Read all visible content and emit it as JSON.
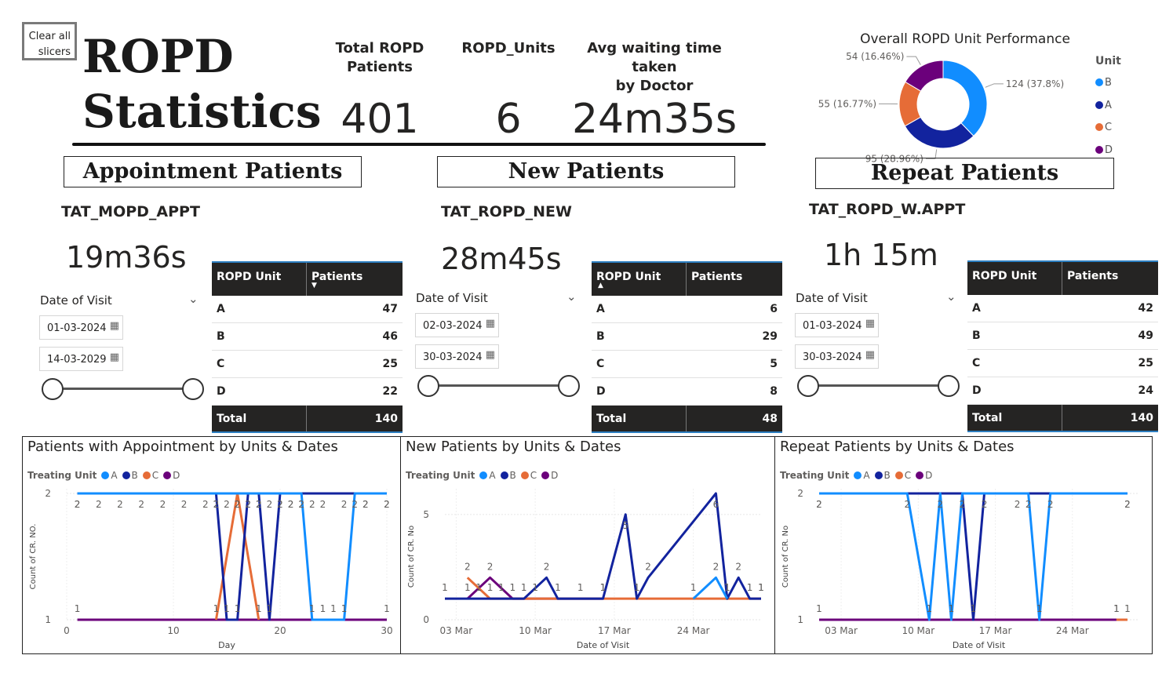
{
  "clear_button": {
    "label_line1": "Clear all",
    "label_line2": "slicers"
  },
  "title": {
    "line1": "ROPD",
    "line2": "Statistics"
  },
  "kpis": [
    {
      "label_line1": "Total ROPD",
      "label_line2": "Patients",
      "value": "401"
    },
    {
      "label_line1": "ROPD_Units",
      "label_line2": "",
      "value": "6"
    },
    {
      "label_line1": "Avg waiting time taken",
      "label_line2": "by Doctor",
      "value": "24m35s"
    }
  ],
  "donut": {
    "title": "Overall ROPD Unit Performance",
    "legend_title": "Unit",
    "slices": [
      {
        "unit": "B",
        "value": 124,
        "label": "124 (37.8%)",
        "color": "#118dff"
      },
      {
        "unit": "A",
        "value": 95,
        "label": "95 (28.96%)",
        "color": "#12239e"
      },
      {
        "unit": "C",
        "value": 55,
        "label": "55 (16.77%)",
        "color": "#e66c37"
      },
      {
        "unit": "D",
        "value": 54,
        "label": "54 (16.46%)",
        "color": "#6b007b"
      }
    ]
  },
  "sections": [
    {
      "heading": "Appointment Patients",
      "tat_label": "TAT_MOPD_APPT",
      "tat_value": "19m36s",
      "slicer": {
        "title": "Date of Visit",
        "start": "01-03-2024",
        "end": "14-03-2029"
      },
      "table": {
        "col1": "ROPD Unit",
        "col2": "Patients",
        "sort_indicator": "▼",
        "rows": [
          {
            "unit": "A",
            "patients": "47"
          },
          {
            "unit": "B",
            "patients": "46"
          },
          {
            "unit": "C",
            "patients": "25"
          },
          {
            "unit": "D",
            "patients": "22"
          }
        ],
        "total_label": "Total",
        "total_value": "140"
      }
    },
    {
      "heading": "New Patients",
      "tat_label": "TAT_ROPD_NEW",
      "tat_value": "28m45s",
      "slicer": {
        "title": "Date of Visit",
        "start": "02-03-2024",
        "end": "30-03-2024"
      },
      "table": {
        "col1": "ROPD Unit",
        "col2": "Patients",
        "sort_indicator": "▲",
        "rows": [
          {
            "unit": "A",
            "patients": "6"
          },
          {
            "unit": "B",
            "patients": "29"
          },
          {
            "unit": "C",
            "patients": "5"
          },
          {
            "unit": "D",
            "patients": "8"
          }
        ],
        "total_label": "Total",
        "total_value": "48"
      }
    },
    {
      "heading": "Repeat Patients",
      "tat_label": "TAT_ROPD_W.APPT",
      "tat_value": "1h 15m",
      "slicer": {
        "title": "Date of Visit",
        "start": "01-03-2024",
        "end": "30-03-2024"
      },
      "table": {
        "col1": "ROPD Unit",
        "col2": "Patients",
        "sort_indicator": "",
        "rows": [
          {
            "unit": "A",
            "patients": "42"
          },
          {
            "unit": "B",
            "patients": "49"
          },
          {
            "unit": "C",
            "patients": "25"
          },
          {
            "unit": "D",
            "patients": "24"
          }
        ],
        "total_label": "Total",
        "total_value": "140"
      }
    }
  ],
  "chart_data": [
    {
      "type": "line",
      "title": "Patients with Appointment by Units & Dates",
      "legend_title": "Treating Unit",
      "xlabel": "Day",
      "ylabel": "Count of CR. NO.",
      "x_ticks": [
        "0",
        "10",
        "20",
        "30"
      ],
      "y_ticks": [
        "1",
        "2"
      ],
      "xlim": [
        0,
        30
      ],
      "ylim": [
        1,
        2
      ],
      "series": [
        {
          "name": "A",
          "color": "#118dff",
          "x": [
            1,
            14,
            15,
            16,
            17,
            18,
            19,
            20,
            21,
            22,
            23,
            24,
            25,
            26,
            27,
            28,
            30
          ],
          "y": [
            2,
            2,
            2,
            2,
            2,
            2,
            2,
            2,
            2,
            2,
            1,
            1,
            1,
            1,
            2,
            2,
            2
          ]
        },
        {
          "name": "B",
          "color": "#12239e",
          "x": [
            1,
            3,
            5,
            7,
            9,
            11,
            13,
            14,
            15,
            16,
            17,
            18,
            19,
            20,
            21,
            22,
            23,
            24,
            26,
            28,
            30
          ],
          "y": [
            2,
            2,
            2,
            2,
            2,
            2,
            2,
            2,
            1,
            1,
            2,
            2,
            1,
            2,
            2,
            2,
            2,
            2,
            2,
            2,
            2
          ]
        },
        {
          "name": "C",
          "color": "#e66c37",
          "x": [
            14,
            16,
            18
          ],
          "y": [
            1,
            2,
            1
          ]
        },
        {
          "name": "D",
          "color": "#6b007b",
          "x": [
            1,
            30
          ],
          "y": [
            1,
            1
          ]
        }
      ]
    },
    {
      "type": "line",
      "title": "New Patients by Units & Dates",
      "legend_title": "Treating Unit",
      "xlabel": "Date of Visit",
      "ylabel": "Count of CR. No",
      "x_ticks": [
        "03 Mar",
        "10 Mar",
        "17 Mar",
        "24 Mar"
      ],
      "y_ticks": [
        "0",
        "5"
      ],
      "xlim": [
        "2024-03-02",
        "2024-03-30"
      ],
      "ylim": [
        0,
        6
      ],
      "series": [
        {
          "name": "A",
          "color": "#118dff",
          "x": [
            "2024-03-24",
            "2024-03-26",
            "2024-03-27"
          ],
          "y": [
            1,
            2,
            1
          ]
        },
        {
          "name": "B",
          "color": "#12239e",
          "x": [
            "2024-03-02",
            "2024-03-05",
            "2024-03-07",
            "2024-03-09",
            "2024-03-11",
            "2024-03-12",
            "2024-03-14",
            "2024-03-16",
            "2024-03-18",
            "2024-03-19",
            "2024-03-20",
            "2024-03-26",
            "2024-03-27",
            "2024-03-28",
            "2024-03-29",
            "2024-03-30"
          ],
          "y": [
            1,
            1,
            1,
            1,
            2,
            1,
            1,
            1,
            5,
            1,
            2,
            6,
            1,
            2,
            1,
            1
          ]
        },
        {
          "name": "C",
          "color": "#e66c37",
          "x": [
            "2024-03-04",
            "2024-03-06",
            "2024-03-30"
          ],
          "y": [
            2,
            1,
            1
          ]
        },
        {
          "name": "D",
          "color": "#6b007b",
          "x": [
            "2024-03-04",
            "2024-03-06",
            "2024-03-08",
            "2024-03-10",
            "2024-03-16"
          ],
          "y": [
            1,
            2,
            1,
            1,
            1
          ]
        }
      ]
    },
    {
      "type": "line",
      "title": "Repeat Patients by Units & Dates",
      "legend_title": "Treating Unit",
      "xlabel": "Date of Visit",
      "ylabel": "Count of CR. No",
      "x_ticks": [
        "03 Mar",
        "10 Mar",
        "17 Mar",
        "24 Mar"
      ],
      "y_ticks": [
        "1",
        "2"
      ],
      "xlim": [
        "2024-03-01",
        "2024-03-30"
      ],
      "ylim": [
        1,
        2
      ],
      "series": [
        {
          "name": "A",
          "color": "#118dff",
          "x": [
            "2024-03-01",
            "2024-03-09",
            "2024-03-11",
            "2024-03-12",
            "2024-03-13",
            "2024-03-14",
            "2024-03-19",
            "2024-03-20",
            "2024-03-21",
            "2024-03-22",
            "2024-03-29"
          ],
          "y": [
            2,
            2,
            1,
            2,
            1,
            2,
            2,
            2,
            1,
            2,
            2
          ]
        },
        {
          "name": "B",
          "color": "#12239e",
          "x": [
            "2024-03-01",
            "2024-03-14",
            "2024-03-15",
            "2024-03-16",
            "2024-03-29"
          ],
          "y": [
            2,
            2,
            1,
            2,
            2
          ]
        },
        {
          "name": "C",
          "color": "#e66c37",
          "x": [
            "2024-03-28",
            "2024-03-29"
          ],
          "y": [
            1,
            1
          ]
        },
        {
          "name": "D",
          "color": "#6b007b",
          "x": [
            "2024-03-01",
            "2024-03-28"
          ],
          "y": [
            1,
            1
          ]
        }
      ]
    }
  ]
}
